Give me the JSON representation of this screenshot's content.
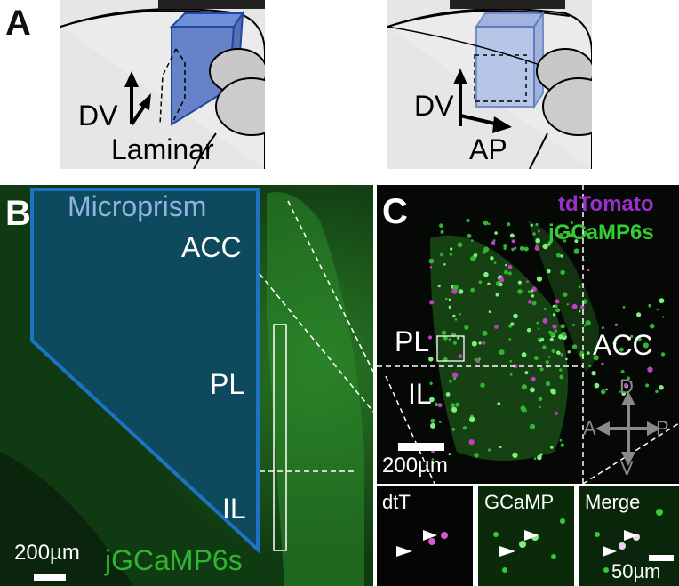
{
  "panel_a": {
    "letter": "A",
    "left_schematic": {
      "axis_label": "DV",
      "caption": "Laminar"
    },
    "right_schematic": {
      "axis_label_vertical": "DV",
      "axis_label_horizontal": "AP"
    }
  },
  "panel_b": {
    "letter": "B",
    "prism_label": "Microprism",
    "regions": [
      "ACC",
      "PL",
      "IL"
    ],
    "scale_bar": "200µm",
    "indicator_label": "jGCaMP6s",
    "colors": {
      "prism_fill": "#0d4a5e",
      "prism_border": "#1e72c4",
      "indicator": "#2fb52f",
      "tissue": "#0f3510"
    }
  },
  "panel_c": {
    "letter": "C",
    "legend": [
      "tdTomato",
      "jGCaMP6s"
    ],
    "legend_colors": [
      "#9b2fc9",
      "#33cc33"
    ],
    "regions": [
      "PL",
      "IL",
      "ACC"
    ],
    "scale_bar": "200µm",
    "compass": {
      "up": "D",
      "down": "V",
      "left": "A",
      "right": "P"
    },
    "insets": [
      {
        "label": "dtT"
      },
      {
        "label": "GCaMP"
      },
      {
        "label": "Merge",
        "scale_bar": "50µm"
      }
    ]
  }
}
